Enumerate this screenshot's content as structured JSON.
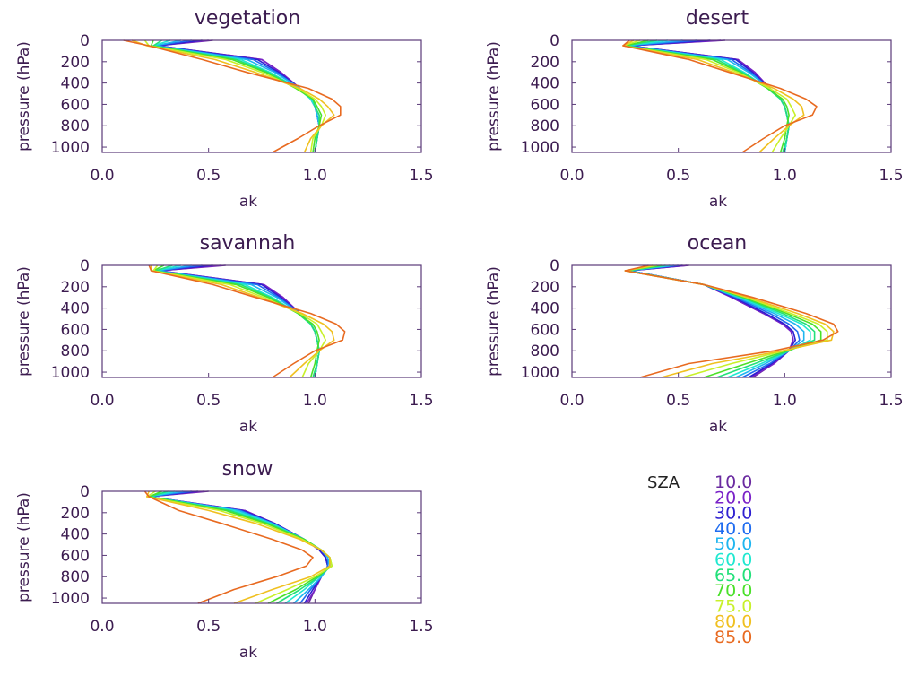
{
  "chart_data": {
    "type": "line",
    "xlabel": "ak",
    "ylabel": "pressure (hPa)",
    "xlim": [
      0.0,
      1.5
    ],
    "ylim": [
      1050,
      0
    ],
    "xticks": [
      "0.0",
      "0.5",
      "1.0",
      "1.5"
    ],
    "yticks": [
      "0",
      "200",
      "400",
      "600",
      "800",
      "1000"
    ],
    "pressure_levels": [
      0,
      50,
      180,
      300,
      450,
      550,
      620,
      700,
      800,
      920,
      1050
    ],
    "legend": {
      "title": "SZA",
      "entries": [
        "10.0",
        "20.0",
        "30.0",
        "40.0",
        "50.0",
        "60.0",
        "65.0",
        "70.0",
        "75.0",
        "80.0",
        "85.0"
      ],
      "colors": [
        "#6a2aa0",
        "#7a22c8",
        "#2d1fd0",
        "#1f6cf0",
        "#1fb6f0",
        "#1fe8d0",
        "#22e07a",
        "#4ae02a",
        "#c8f02a",
        "#f0c020",
        "#e86a20"
      ]
    },
    "panels": [
      {
        "title": "vegetation",
        "sza_series": [
          {
            "sza": "10.0",
            "values": [
              0.52,
              0.26,
              0.75,
              0.84,
              0.93,
              0.98,
              1.0,
              1.01,
              1.02,
              1.01,
              1.0
            ]
          },
          {
            "sza": "20.0",
            "values": [
              0.5,
              0.26,
              0.75,
              0.84,
              0.93,
              0.98,
              1.0,
              1.01,
              1.02,
              1.01,
              1.0
            ]
          },
          {
            "sza": "30.0",
            "values": [
              0.47,
              0.26,
              0.73,
              0.83,
              0.93,
              0.98,
              1.0,
              1.01,
              1.02,
              1.01,
              1.0
            ]
          },
          {
            "sza": "40.0",
            "values": [
              0.42,
              0.25,
              0.71,
              0.82,
              0.93,
              0.98,
              1.0,
              1.01,
              1.02,
              1.01,
              1.0
            ]
          },
          {
            "sza": "50.0",
            "values": [
              0.37,
              0.25,
              0.68,
              0.81,
              0.93,
              0.98,
              1.0,
              1.01,
              1.02,
              1.01,
              1.0
            ]
          },
          {
            "sza": "60.0",
            "values": [
              0.32,
              0.24,
              0.65,
              0.79,
              0.92,
              0.98,
              1.0,
              1.02,
              1.02,
              1.01,
              1.0
            ]
          },
          {
            "sza": "65.0",
            "values": [
              0.28,
              0.24,
              0.63,
              0.78,
              0.92,
              0.99,
              1.0,
              1.02,
              1.02,
              1.01,
              1.0
            ]
          },
          {
            "sza": "70.0",
            "values": [
              0.24,
              0.23,
              0.61,
              0.77,
              0.91,
              0.99,
              1.01,
              1.03,
              1.02,
              1.0,
              0.99
            ]
          },
          {
            "sza": "75.0",
            "values": [
              0.2,
              0.22,
              0.58,
              0.75,
              0.92,
              1.0,
              1.03,
              1.05,
              1.03,
              0.99,
              0.98
            ]
          },
          {
            "sza": "80.0",
            "values": [
              0.14,
              0.21,
              0.53,
              0.72,
              0.93,
              1.02,
              1.06,
              1.09,
              1.03,
              0.98,
              0.95
            ]
          },
          {
            "sza": "85.0",
            "values": [
              0.1,
              0.22,
              0.47,
              0.68,
              0.97,
              1.08,
              1.12,
              1.12,
              1.02,
              0.92,
              0.8
            ]
          }
        ]
      },
      {
        "title": "desert",
        "sza_series": [
          {
            "sza": "10.0",
            "values": [
              0.72,
              0.27,
              0.78,
              0.86,
              0.93,
              0.98,
              1.0,
              1.01,
              1.02,
              1.01,
              1.0
            ]
          },
          {
            "sza": "20.0",
            "values": [
              0.7,
              0.27,
              0.78,
              0.86,
              0.93,
              0.98,
              1.0,
              1.01,
              1.02,
              1.01,
              1.0
            ]
          },
          {
            "sza": "30.0",
            "values": [
              0.65,
              0.27,
              0.77,
              0.85,
              0.93,
              0.98,
              1.0,
              1.01,
              1.02,
              1.01,
              1.0
            ]
          },
          {
            "sza": "40.0",
            "values": [
              0.59,
              0.26,
              0.75,
              0.84,
              0.93,
              0.98,
              1.0,
              1.01,
              1.02,
              1.01,
              1.0
            ]
          },
          {
            "sza": "50.0",
            "values": [
              0.52,
              0.26,
              0.73,
              0.83,
              0.93,
              0.98,
              1.0,
              1.01,
              1.02,
              1.01,
              1.0
            ]
          },
          {
            "sza": "60.0",
            "values": [
              0.45,
              0.25,
              0.7,
              0.81,
              0.92,
              0.98,
              1.0,
              1.01,
              1.02,
              1.01,
              1.0
            ]
          },
          {
            "sza": "65.0",
            "values": [
              0.4,
              0.25,
              0.68,
              0.8,
              0.92,
              0.98,
              1.0,
              1.01,
              1.02,
              1.01,
              0.99
            ]
          },
          {
            "sza": "70.0",
            "values": [
              0.36,
              0.25,
              0.66,
              0.79,
              0.92,
              0.99,
              1.01,
              1.02,
              1.01,
              1.0,
              0.98
            ]
          },
          {
            "sza": "75.0",
            "values": [
              0.32,
              0.24,
              0.63,
              0.78,
              0.93,
              1.01,
              1.03,
              1.05,
              1.02,
              0.98,
              0.94
            ]
          },
          {
            "sza": "80.0",
            "values": [
              0.29,
              0.24,
              0.59,
              0.76,
              0.95,
              1.04,
              1.08,
              1.09,
              1.02,
              0.95,
              0.88
            ]
          },
          {
            "sza": "85.0",
            "values": [
              0.27,
              0.24,
              0.55,
              0.74,
              0.98,
              1.1,
              1.15,
              1.13,
              1.0,
              0.9,
              0.8
            ]
          }
        ]
      },
      {
        "title": "savannah",
        "sza_series": [
          {
            "sza": "10.0",
            "values": [
              0.58,
              0.27,
              0.76,
              0.85,
              0.93,
              0.98,
              1.0,
              1.01,
              1.02,
              1.01,
              1.0
            ]
          },
          {
            "sza": "20.0",
            "values": [
              0.56,
              0.27,
              0.76,
              0.85,
              0.93,
              0.98,
              1.0,
              1.01,
              1.02,
              1.01,
              1.0
            ]
          },
          {
            "sza": "30.0",
            "values": [
              0.52,
              0.26,
              0.75,
              0.84,
              0.93,
              0.98,
              1.0,
              1.01,
              1.02,
              1.01,
              1.0
            ]
          },
          {
            "sza": "40.0",
            "values": [
              0.47,
              0.26,
              0.73,
              0.83,
              0.93,
              0.98,
              1.0,
              1.01,
              1.02,
              1.01,
              1.0
            ]
          },
          {
            "sza": "50.0",
            "values": [
              0.42,
              0.26,
              0.7,
              0.82,
              0.93,
              0.98,
              1.0,
              1.01,
              1.02,
              1.01,
              1.0
            ]
          },
          {
            "sza": "60.0",
            "values": [
              0.37,
              0.25,
              0.67,
              0.8,
              0.92,
              0.98,
              1.0,
              1.01,
              1.02,
              1.01,
              1.0
            ]
          },
          {
            "sza": "65.0",
            "values": [
              0.33,
              0.25,
              0.65,
              0.79,
              0.92,
              0.98,
              1.0,
              1.01,
              1.02,
              1.01,
              0.99
            ]
          },
          {
            "sza": "70.0",
            "values": [
              0.29,
              0.24,
              0.63,
              0.78,
              0.92,
              0.99,
              1.01,
              1.02,
              1.01,
              1.0,
              0.98
            ]
          },
          {
            "sza": "75.0",
            "values": [
              0.26,
              0.24,
              0.6,
              0.76,
              0.93,
              1.01,
              1.03,
              1.05,
              1.02,
              0.97,
              0.94
            ]
          },
          {
            "sza": "80.0",
            "values": [
              0.23,
              0.23,
              0.56,
              0.74,
              0.94,
              1.04,
              1.08,
              1.09,
              1.02,
              0.95,
              0.88
            ]
          },
          {
            "sza": "85.0",
            "values": [
              0.22,
              0.23,
              0.52,
              0.72,
              0.98,
              1.1,
              1.14,
              1.13,
              1.0,
              0.9,
              0.8
            ]
          }
        ]
      },
      {
        "title": "ocean",
        "sza_series": [
          {
            "sza": "10.0",
            "values": [
              0.55,
              0.27,
              0.62,
              0.75,
              0.9,
              0.99,
              1.03,
              1.04,
              1.02,
              0.95,
              0.85
            ]
          },
          {
            "sza": "20.0",
            "values": [
              0.54,
              0.27,
              0.62,
              0.75,
              0.9,
              0.99,
              1.03,
              1.04,
              1.02,
              0.95,
              0.84
            ]
          },
          {
            "sza": "30.0",
            "values": [
              0.52,
              0.27,
              0.62,
              0.76,
              0.91,
              1.0,
              1.04,
              1.05,
              1.02,
              0.94,
              0.83
            ]
          },
          {
            "sza": "40.0",
            "values": [
              0.5,
              0.27,
              0.62,
              0.77,
              0.93,
              1.02,
              1.06,
              1.07,
              1.02,
              0.93,
              0.8
            ]
          },
          {
            "sza": "50.0",
            "values": [
              0.48,
              0.26,
              0.62,
              0.78,
              0.95,
              1.05,
              1.09,
              1.09,
              1.02,
              0.91,
              0.77
            ]
          },
          {
            "sza": "60.0",
            "values": [
              0.46,
              0.26,
              0.62,
              0.79,
              0.97,
              1.08,
              1.12,
              1.12,
              1.02,
              0.89,
              0.73
            ]
          },
          {
            "sza": "65.0",
            "values": [
              0.44,
              0.26,
              0.62,
              0.8,
              0.99,
              1.1,
              1.14,
              1.14,
              1.02,
              0.86,
              0.68
            ]
          },
          {
            "sza": "70.0",
            "values": [
              0.42,
              0.25,
              0.62,
              0.81,
              1.01,
              1.13,
              1.17,
              1.17,
              1.01,
              0.82,
              0.62
            ]
          },
          {
            "sza": "75.0",
            "values": [
              0.4,
              0.25,
              0.62,
              0.82,
              1.03,
              1.16,
              1.2,
              1.2,
              1.0,
              0.75,
              0.52
            ]
          },
          {
            "sza": "80.0",
            "values": [
              0.38,
              0.25,
              0.62,
              0.83,
              1.06,
              1.19,
              1.23,
              1.22,
              0.99,
              0.66,
              0.42
            ]
          },
          {
            "sza": "85.0",
            "values": [
              0.36,
              0.25,
              0.62,
              0.85,
              1.1,
              1.23,
              1.25,
              1.18,
              0.95,
              0.55,
              0.32
            ]
          }
        ]
      },
      {
        "title": "snow",
        "sza_series": [
          {
            "sza": "10.0",
            "values": [
              0.5,
              0.22,
              0.67,
              0.81,
              0.95,
              1.02,
              1.05,
              1.06,
              1.03,
              1.0,
              0.97
            ]
          },
          {
            "sza": "20.0",
            "values": [
              0.48,
              0.22,
              0.67,
              0.81,
              0.95,
              1.02,
              1.05,
              1.06,
              1.03,
              1.0,
              0.96
            ]
          },
          {
            "sza": "30.0",
            "values": [
              0.45,
              0.22,
              0.66,
              0.81,
              0.95,
              1.02,
              1.05,
              1.06,
              1.03,
              0.99,
              0.95
            ]
          },
          {
            "sza": "40.0",
            "values": [
              0.42,
              0.22,
              0.65,
              0.8,
              0.95,
              1.03,
              1.06,
              1.06,
              1.03,
              0.98,
              0.93
            ]
          },
          {
            "sza": "50.0",
            "values": [
              0.38,
              0.22,
              0.64,
              0.8,
              0.95,
              1.03,
              1.06,
              1.07,
              1.03,
              0.97,
              0.9
            ]
          },
          {
            "sza": "60.0",
            "values": [
              0.34,
              0.22,
              0.62,
              0.79,
              0.95,
              1.03,
              1.07,
              1.07,
              1.02,
              0.95,
              0.86
            ]
          },
          {
            "sza": "65.0",
            "values": [
              0.31,
              0.22,
              0.6,
              0.78,
              0.95,
              1.03,
              1.07,
              1.07,
              1.02,
              0.93,
              0.82
            ]
          },
          {
            "sza": "70.0",
            "values": [
              0.28,
              0.22,
              0.58,
              0.77,
              0.95,
              1.03,
              1.07,
              1.08,
              1.01,
              0.91,
              0.78
            ]
          },
          {
            "sza": "75.0",
            "values": [
              0.25,
              0.21,
              0.55,
              0.75,
              0.94,
              1.03,
              1.07,
              1.08,
              1.0,
              0.87,
              0.72
            ]
          },
          {
            "sza": "80.0",
            "values": [
              0.22,
              0.21,
              0.5,
              0.72,
              0.93,
              1.03,
              1.07,
              1.07,
              0.98,
              0.8,
              0.62
            ]
          },
          {
            "sza": "85.0",
            "values": [
              0.2,
              0.22,
              0.36,
              0.56,
              0.8,
              0.94,
              0.99,
              0.96,
              0.82,
              0.62,
              0.45
            ]
          }
        ]
      }
    ]
  }
}
